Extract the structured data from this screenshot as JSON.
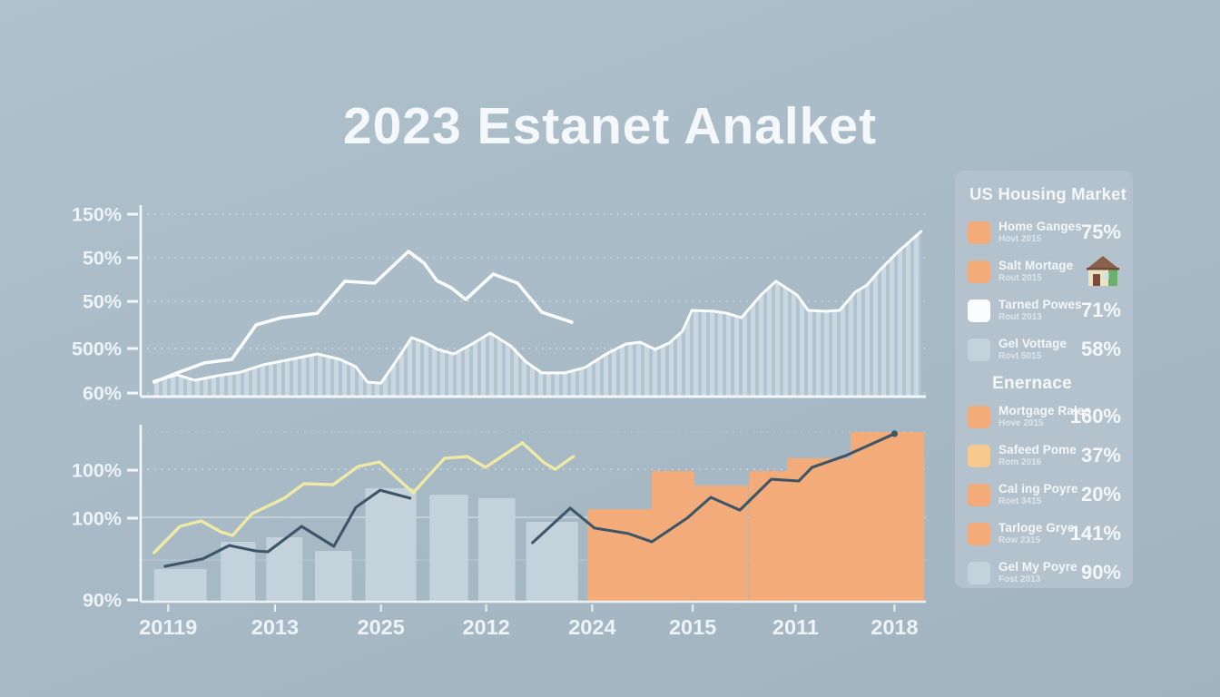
{
  "title": "2023 Estanet Analket",
  "colors": {
    "background": "#a9bdc9",
    "panel": "#b3c2cd",
    "orange": "#f2ab79",
    "light_orange": "#f6c98f",
    "white_swatch": "#fafcfd",
    "pale_blue": "#c4d3db",
    "stripe_light": "#cbd8df",
    "stripe_dark": "#b0c4d1",
    "yellow_line": "#eeeaa6",
    "dark_line": "#3e5668",
    "white_line": "#fbfdfd",
    "axis": "#f3f7f9",
    "tick_text": "#edf3f7"
  },
  "legend": {
    "title": "US Housing Market",
    "rows": [
      {
        "type": "item",
        "swatch": "orange",
        "label": "Home Ganges",
        "sublabel": "Hovt 2015",
        "value": "75%"
      },
      {
        "type": "item",
        "swatch": "orange",
        "label": "Salt Mortage",
        "sublabel": "Rout 2015",
        "value": "",
        "icon": "house-icon"
      },
      {
        "type": "item",
        "swatch": "white",
        "label": "Tarned Powes",
        "sublabel": "Rout 2013",
        "value": "71%"
      },
      {
        "type": "item",
        "swatch": "pale-blue",
        "label": "Gel Vottage",
        "sublabel": "Rovt 5015",
        "value": "58%"
      },
      {
        "type": "heading",
        "label": "Enernace"
      },
      {
        "type": "item",
        "swatch": "orange",
        "label": "Mortgage Rales",
        "sublabel": "Hove 2015",
        "value": "160%"
      },
      {
        "type": "item",
        "swatch": "light-orange",
        "label": "Safeed Pome",
        "sublabel": "Rom 2016",
        "value": "37%"
      },
      {
        "type": "item",
        "swatch": "orange",
        "label": "Cal ing Poyre",
        "sublabel": "Roet 3415",
        "value": "20%"
      },
      {
        "type": "item",
        "swatch": "orange",
        "label": "Tarloge Grye",
        "sublabel": "Row 2315",
        "value": "141%"
      },
      {
        "type": "item",
        "swatch": "pale-blue",
        "label": "Gel My Poyre",
        "sublabel": "Fost 2013",
        "value": "90%"
      }
    ]
  },
  "chart_data": [
    {
      "type": "area",
      "title": "",
      "xlabel": "",
      "ylabel": "",
      "x_unit": "percent of plot width (no x tick labels shown)",
      "y_unit": "percent of plot height above baseline",
      "grid": "dashed horizontal gridlines at each y tick",
      "yticks": [
        {
          "label": "150%",
          "y": 97.1
        },
        {
          "label": "50%",
          "y": 73.9
        },
        {
          "label": "50%",
          "y": 50.7
        },
        {
          "label": "500%",
          "y": 25.6
        },
        {
          "label": "60%",
          "y": 1.9
        }
      ],
      "series": [
        {
          "name": "white-trend-line",
          "type": "line",
          "color_key": "white_line",
          "points": [
            [
              1.7,
              7.7
            ],
            [
              4.9,
              13.0
            ],
            [
              8.1,
              17.9
            ],
            [
              11.6,
              19.8
            ],
            [
              14.7,
              38.2
            ],
            [
              17.9,
              42.0
            ],
            [
              22.5,
              44.4
            ],
            [
              26.0,
              61.4
            ],
            [
              29.8,
              60.4
            ],
            [
              34.1,
              77.3
            ],
            [
              36.1,
              71.0
            ],
            [
              37.7,
              61.8
            ],
            [
              39.5,
              58.0
            ],
            [
              41.4,
              51.7
            ],
            [
              44.9,
              65.2
            ],
            [
              48.0,
              60.4
            ],
            [
              51.1,
              44.9
            ],
            [
              54.9,
              39.6
            ]
          ]
        },
        {
          "name": "striped-area",
          "type": "area",
          "color_key": "stripe_light",
          "points": [
            [
              1.7,
              8.2
            ],
            [
              4.6,
              11.6
            ],
            [
              6.9,
              8.7
            ],
            [
              9.8,
              11.1
            ],
            [
              12.7,
              13.0
            ],
            [
              15.6,
              16.9
            ],
            [
              18.5,
              19.3
            ],
            [
              22.5,
              22.7
            ],
            [
              25.4,
              19.8
            ],
            [
              27.4,
              15.9
            ],
            [
              28.9,
              7.7
            ],
            [
              30.6,
              7.2
            ],
            [
              32.6,
              19.3
            ],
            [
              34.5,
              31.4
            ],
            [
              36.1,
              29.0
            ],
            [
              37.8,
              25.1
            ],
            [
              39.9,
              22.7
            ],
            [
              42.4,
              28.5
            ],
            [
              44.5,
              33.8
            ],
            [
              47.1,
              27.1
            ],
            [
              49.1,
              18.4
            ],
            [
              51.1,
              12.6
            ],
            [
              54.0,
              12.6
            ],
            [
              56.6,
              15.5
            ],
            [
              59.3,
              22.7
            ],
            [
              61.8,
              28.0
            ],
            [
              63.6,
              29.0
            ],
            [
              65.5,
              25.1
            ],
            [
              67.3,
              28.5
            ],
            [
              69.0,
              34.8
            ],
            [
              70.2,
              45.9
            ],
            [
              73.1,
              45.4
            ],
            [
              74.6,
              44.4
            ],
            [
              76.5,
              42.0
            ],
            [
              79.0,
              54.1
            ],
            [
              80.9,
              61.4
            ],
            [
              83.6,
              54.1
            ],
            [
              85.0,
              45.9
            ],
            [
              87.3,
              45.4
            ],
            [
              89.0,
              45.9
            ],
            [
              91.0,
              55.6
            ],
            [
              92.5,
              59.4
            ],
            [
              94.2,
              67.6
            ],
            [
              96.5,
              77.3
            ],
            [
              99.4,
              87.9
            ]
          ]
        }
      ]
    },
    {
      "type": "bar",
      "title": "",
      "xlabel": "",
      "ylabel": "",
      "x_unit": "percent of plot width",
      "y_unit": "percent of plot height above baseline",
      "xticks": [
        {
          "label": "20119",
          "x": 3.5
        },
        {
          "label": "2013",
          "x": 17.1
        },
        {
          "label": "2025",
          "x": 30.6
        },
        {
          "label": "2012",
          "x": 44.0
        },
        {
          "label": "2024",
          "x": 57.5
        },
        {
          "label": "2015",
          "x": 70.3
        },
        {
          "label": "2011",
          "x": 83.4
        },
        {
          "label": "2018",
          "x": 96.0
        }
      ],
      "yticks": [
        {
          "label": "100%",
          "y": 75.1
        },
        {
          "label": "100%",
          "y": 47.7
        },
        {
          "label": "90%",
          "y": 1.0
        }
      ],
      "gridlines": [
        {
          "y": 96.9,
          "style": "faint-dash"
        },
        {
          "y": 75.6,
          "style": "dash"
        },
        {
          "y": 48.2,
          "style": "solid"
        },
        {
          "y": 23.8,
          "style": "faint"
        }
      ],
      "bars": [
        {
          "x": 1.7,
          "w": 6.7,
          "v": 18.7,
          "color": "pale"
        },
        {
          "x": 10.2,
          "w": 4.4,
          "v": 34.2,
          "color": "pale"
        },
        {
          "x": 16.0,
          "w": 4.6,
          "v": 36.8,
          "color": "pale"
        },
        {
          "x": 22.2,
          "w": 4.7,
          "v": 29.0,
          "color": "pale"
        },
        {
          "x": 28.6,
          "w": 6.5,
          "v": 64.8,
          "color": "pale"
        },
        {
          "x": 36.8,
          "w": 4.9,
          "v": 61.1,
          "color": "pale"
        },
        {
          "x": 43.0,
          "w": 4.7,
          "v": 59.1,
          "color": "pale"
        },
        {
          "x": 49.1,
          "w": 6.6,
          "v": 45.6,
          "color": "pale"
        },
        {
          "x": 56.9,
          "w": 8.2,
          "v": 52.8,
          "color": "orange"
        },
        {
          "x": 65.1,
          "w": 5.4,
          "v": 74.6,
          "color": "orange"
        },
        {
          "x": 70.5,
          "w": 6.9,
          "v": 66.3,
          "color": "orange"
        },
        {
          "x": 77.5,
          "w": 4.9,
          "v": 74.6,
          "color": "orange"
        },
        {
          "x": 82.3,
          "w": 8.1,
          "v": 81.9,
          "color": "orange"
        },
        {
          "x": 90.4,
          "w": 9.4,
          "v": 96.9,
          "color": "orange"
        }
      ],
      "series": [
        {
          "name": "yellow-line",
          "type": "line",
          "color_key": "yellow_line",
          "points": [
            [
              1.7,
              28.0
            ],
            [
              5.0,
              43.0
            ],
            [
              7.7,
              46.1
            ],
            [
              10.2,
              39.9
            ],
            [
              11.7,
              37.8
            ],
            [
              14.2,
              50.3
            ],
            [
              18.3,
              59.1
            ],
            [
              20.8,
              67.4
            ],
            [
              24.5,
              66.8
            ],
            [
              27.7,
              77.2
            ],
            [
              30.4,
              79.8
            ],
            [
              34.7,
              62.2
            ],
            [
              38.7,
              81.9
            ],
            [
              41.6,
              82.9
            ],
            [
              43.9,
              76.7
            ],
            [
              48.6,
              90.7
            ],
            [
              51.4,
              79.3
            ],
            [
              52.8,
              75.6
            ],
            [
              55.1,
              82.9
            ]
          ]
        },
        {
          "name": "dark-line-segment-1",
          "type": "line",
          "color_key": "dark_line",
          "points": [
            [
              3.1,
              20.2
            ],
            [
              7.9,
              24.4
            ],
            [
              11.3,
              32.1
            ],
            [
              14.6,
              29.0
            ],
            [
              16.2,
              28.5
            ],
            [
              20.5,
              43.0
            ],
            [
              24.6,
              31.6
            ],
            [
              27.4,
              53.9
            ],
            [
              30.5,
              63.7
            ],
            [
              34.3,
              59.1
            ]
          ]
        },
        {
          "name": "dark-line-segment-2",
          "type": "line",
          "color_key": "dark_line",
          "end_dot": true,
          "points": [
            [
              49.9,
              33.7
            ],
            [
              54.7,
              53.4
            ],
            [
              57.8,
              42.0
            ],
            [
              62.1,
              38.9
            ],
            [
              65.1,
              34.2
            ],
            [
              69.6,
              47.7
            ],
            [
              72.6,
              59.6
            ],
            [
              76.3,
              52.3
            ],
            [
              80.3,
              69.9
            ],
            [
              83.8,
              68.9
            ],
            [
              85.5,
              76.7
            ],
            [
              89.8,
              83.4
            ],
            [
              96.0,
              95.9
            ]
          ]
        }
      ]
    }
  ]
}
